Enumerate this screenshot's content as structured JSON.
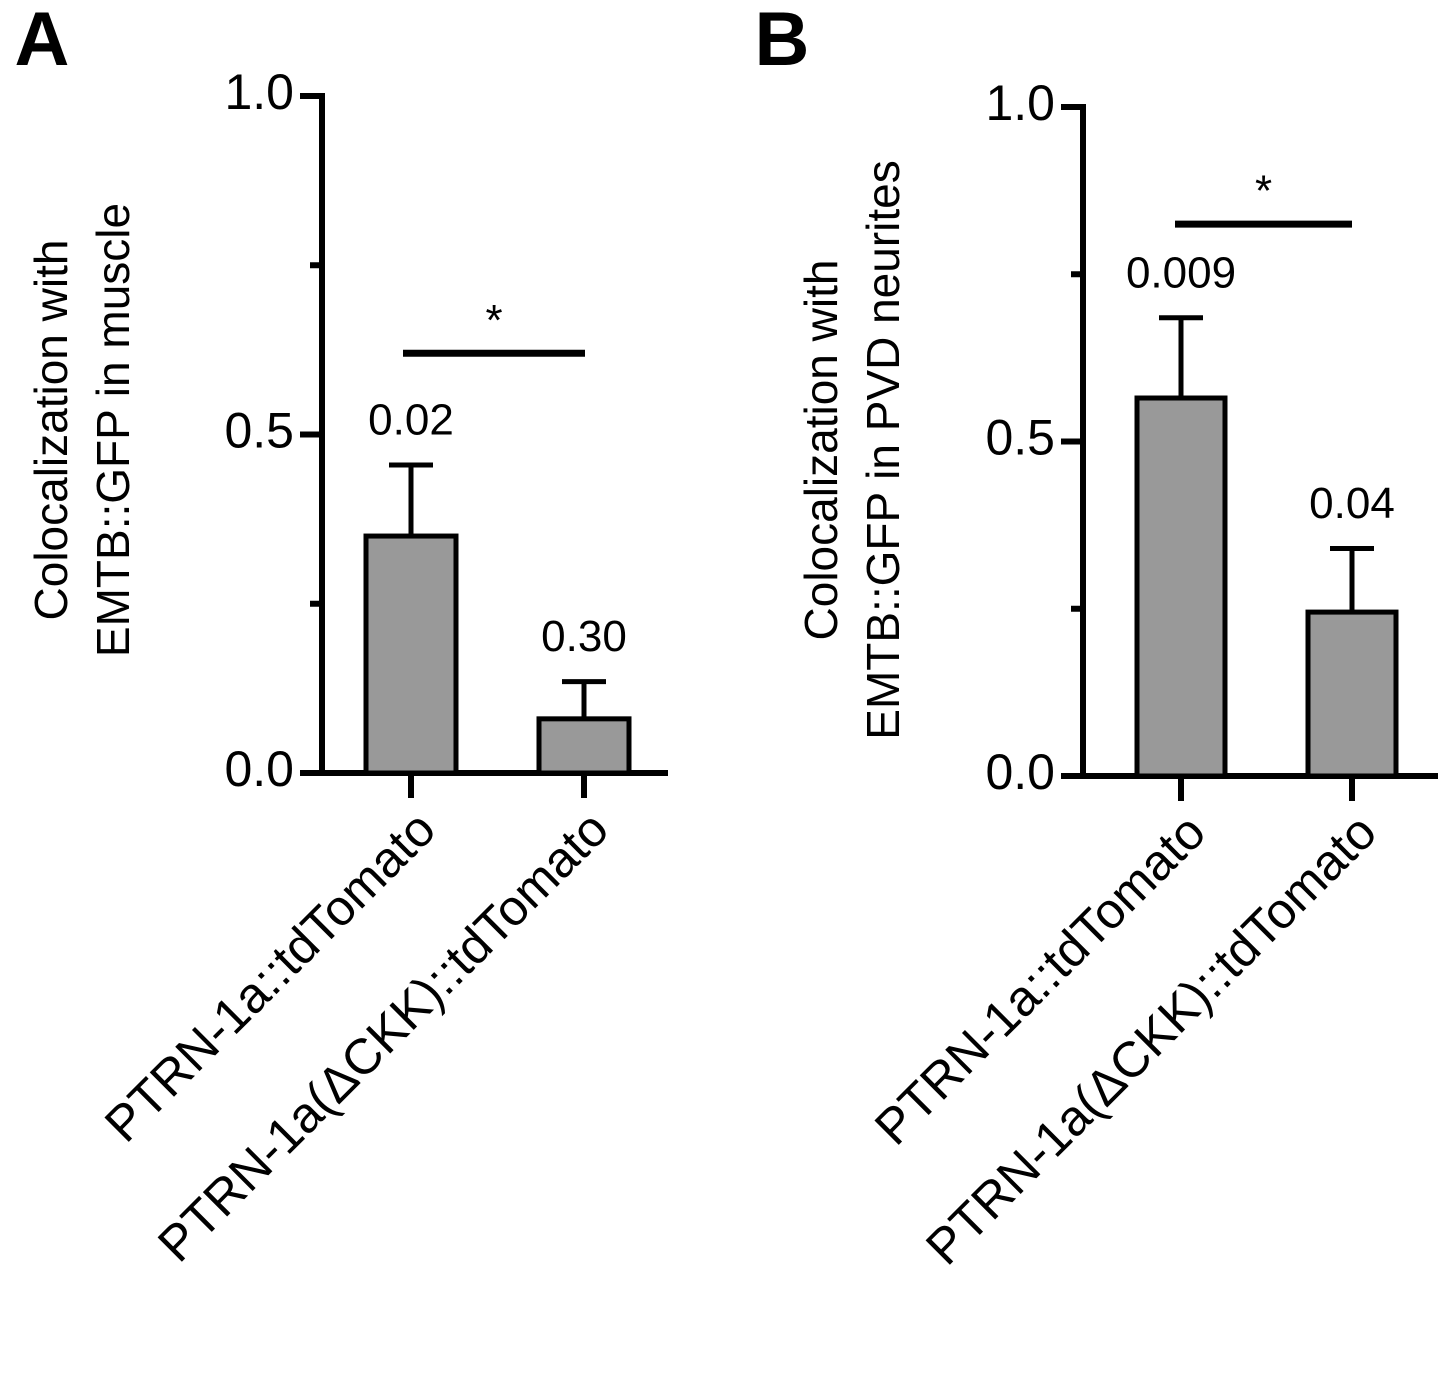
{
  "chart_data": [
    {
      "type": "bar",
      "panel_label": "A",
      "ylabel": [
        "Colocalization with",
        "EMTB::GFP in muscle"
      ],
      "categories": [
        "PTRN-1a::tdTomato",
        "PTRN-1a(ΔCKK)::tdTomato"
      ],
      "values": [
        0.35,
        0.08
      ],
      "errors": [
        0.105,
        0.055
      ],
      "bar_labels": [
        "0.02",
        "0.30"
      ],
      "color": "#999999",
      "ylim": [
        0,
        1.0
      ],
      "yticks": [
        {
          "value": 0,
          "label": "0.0"
        },
        0.5,
        {
          "value": 1.0,
          "label": "1.0"
        }
      ],
      "yminor_ticks": [
        0.25,
        0.75
      ],
      "significance": {
        "label": "*",
        "y": 0.62
      }
    },
    {
      "type": "bar",
      "panel_label": "B",
      "ylabel": [
        "Colocalization with",
        "EMTB::GFP in PVD neurites"
      ],
      "categories": [
        "PTRN-1a::tdTomato",
        "PTRN-1a(ΔCKK)::tdTomato"
      ],
      "values": [
        0.565,
        0.245
      ],
      "errors": [
        0.12,
        0.095
      ],
      "bar_labels": [
        "0.009",
        "0.04"
      ],
      "color": "#999999",
      "ylim": [
        0,
        1.0
      ],
      "yticks": [
        {
          "value": 0,
          "label": "0.0"
        },
        0.5,
        {
          "value": 1.0,
          "label": "1.0"
        }
      ],
      "yminor_ticks": [
        0.25,
        0.75
      ],
      "significance": {
        "label": "*",
        "y": 0.825
      }
    }
  ]
}
